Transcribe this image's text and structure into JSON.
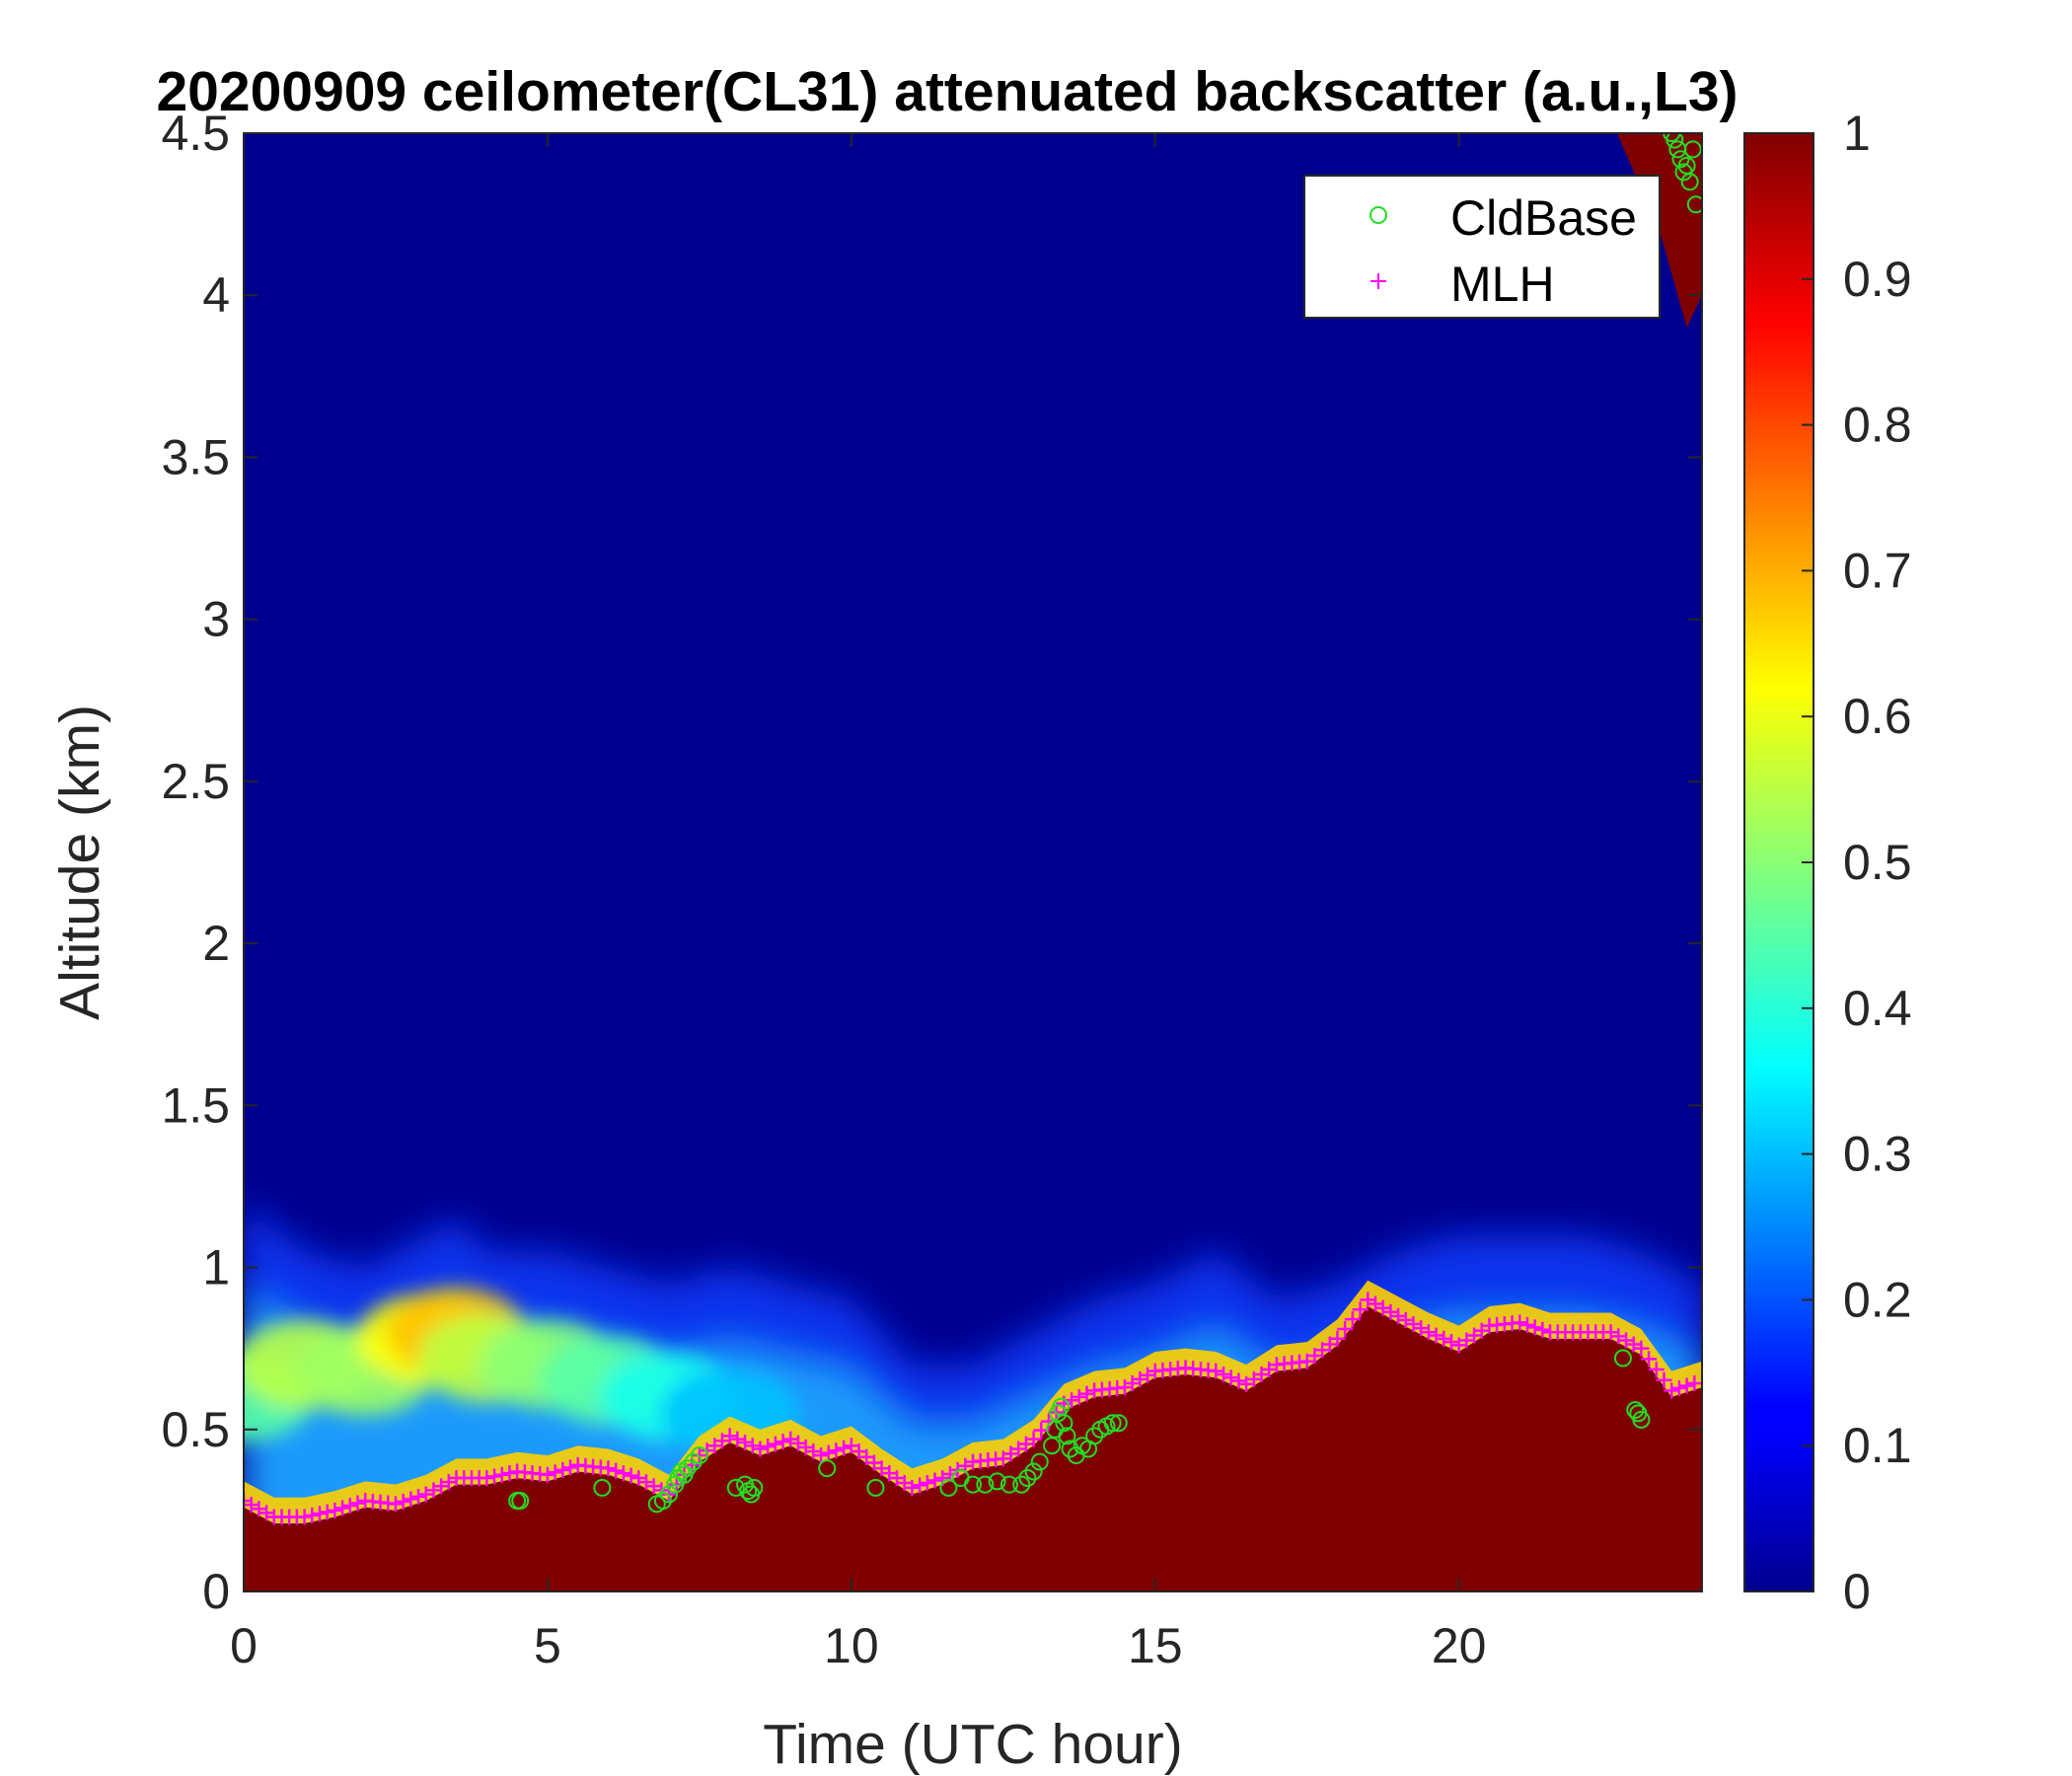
{
  "chart_data": {
    "type": "heatmap",
    "title": "20200909 ceilometer(CL31) attenuated backscatter (a.u.,L3)",
    "xlabel": "Time (UTC hour)",
    "ylabel": "Altitude (km)",
    "xlim": [
      0,
      24
    ],
    "ylim": [
      0,
      4.5
    ],
    "xticks": [
      0,
      5,
      10,
      15,
      20
    ],
    "yticks": [
      0,
      0.5,
      1,
      1.5,
      2,
      2.5,
      3,
      3.5,
      4,
      4.5
    ],
    "colorbar": {
      "range": [
        0,
        1
      ],
      "ticks": [
        0,
        0.1,
        0.2,
        0.3,
        0.4,
        0.5,
        0.6,
        0.7,
        0.8,
        0.9,
        1
      ],
      "colormap": "jet"
    },
    "legend": {
      "position": "top-right",
      "entries": [
        "CldBase",
        "MLH"
      ]
    },
    "colors": {
      "cldbase": "#22dd22",
      "mlh": "#ff00ff",
      "saturated": "#7f0000",
      "background": "#00008f"
    },
    "mlh": {
      "name": "MLH",
      "x": [
        0,
        0.5,
        1,
        1.5,
        2,
        2.5,
        3,
        3.5,
        4,
        4.5,
        5,
        5.5,
        6,
        6.5,
        7,
        7.5,
        8,
        8.5,
        9,
        9.5,
        10,
        10.5,
        11,
        11.5,
        12,
        12.5,
        13,
        13.5,
        14,
        14.5,
        15,
        15.5,
        16,
        16.5,
        17,
        17.5,
        18,
        18.5,
        19,
        19.5,
        20,
        20.5,
        21,
        21.5,
        22,
        22.5,
        23,
        23.5,
        24
      ],
      "y": [
        0.28,
        0.23,
        0.23,
        0.25,
        0.28,
        0.27,
        0.3,
        0.35,
        0.35,
        0.37,
        0.36,
        0.39,
        0.38,
        0.35,
        0.3,
        0.42,
        0.48,
        0.44,
        0.47,
        0.42,
        0.45,
        0.38,
        0.32,
        0.35,
        0.4,
        0.41,
        0.47,
        0.58,
        0.62,
        0.63,
        0.68,
        0.69,
        0.68,
        0.64,
        0.7,
        0.71,
        0.78,
        0.9,
        0.85,
        0.8,
        0.76,
        0.82,
        0.83,
        0.8,
        0.8,
        0.8,
        0.75,
        0.62,
        0.65
      ]
    },
    "cldbase": {
      "name": "CldBase",
      "x": [
        4.5,
        4.55,
        5.9,
        6.8,
        6.9,
        7.0,
        7.1,
        7.15,
        7.2,
        7.25,
        7.3,
        7.4,
        7.5,
        8.1,
        8.25,
        8.3,
        8.35,
        8.4,
        9.6,
        10.4,
        11.6,
        11.8,
        12.0,
        12.2,
        12.4,
        12.6,
        12.8,
        12.9,
        13.0,
        13.1,
        13.3,
        13.35,
        13.4,
        13.45,
        13.5,
        13.55,
        13.6,
        13.7,
        13.8,
        13.9,
        14.0,
        14.1,
        14.2,
        14.3,
        14.4,
        22.7,
        22.9,
        22.95,
        23.0,
        23.5,
        23.55,
        23.6,
        23.65,
        23.7,
        23.75,
        23.8,
        23.85,
        23.9
      ],
      "y": [
        0.28,
        0.28,
        0.32,
        0.27,
        0.28,
        0.3,
        0.33,
        0.35,
        0.37,
        0.36,
        0.38,
        0.4,
        0.42,
        0.32,
        0.33,
        0.31,
        0.3,
        0.32,
        0.38,
        0.32,
        0.32,
        0.35,
        0.33,
        0.33,
        0.34,
        0.33,
        0.33,
        0.35,
        0.37,
        0.4,
        0.45,
        0.5,
        0.55,
        0.57,
        0.52,
        0.48,
        0.44,
        0.42,
        0.45,
        0.44,
        0.48,
        0.5,
        0.51,
        0.52,
        0.52,
        0.72,
        0.56,
        0.55,
        0.53,
        4.5,
        4.48,
        4.45,
        4.42,
        4.38,
        4.4,
        4.35,
        4.45,
        4.28
      ]
    },
    "aerosol_layer": {
      "top_x": [
        0,
        1,
        2,
        3,
        3.5,
        4,
        5,
        6,
        7,
        8,
        9,
        10,
        11,
        12,
        13,
        14,
        15,
        16,
        17,
        18,
        19,
        20,
        21,
        22,
        23,
        24
      ],
      "top_y": [
        1.1,
        0.95,
        0.9,
        1.0,
        1.05,
        0.95,
        0.95,
        0.9,
        0.85,
        0.9,
        0.85,
        0.8,
        0.6,
        0.6,
        0.7,
        0.8,
        0.85,
        0.95,
        0.8,
        0.85,
        0.95,
        1.0,
        1.0,
        1.0,
        0.95,
        0.85
      ],
      "peak_x": [
        0,
        1,
        2,
        3,
        3.5,
        4,
        5,
        6,
        7,
        8
      ],
      "peak_y": [
        0.6,
        0.7,
        0.68,
        0.78,
        0.8,
        0.72,
        0.7,
        0.65,
        0.6,
        0.55
      ],
      "peak_value": [
        0.45,
        0.55,
        0.52,
        0.62,
        0.68,
        0.55,
        0.5,
        0.45,
        0.38,
        0.3
      ]
    },
    "cloud_patch": {
      "x_start": 22.6,
      "x_end": 24,
      "y_bottom": 3.9,
      "y_top": 4.5,
      "value": 1
    }
  }
}
